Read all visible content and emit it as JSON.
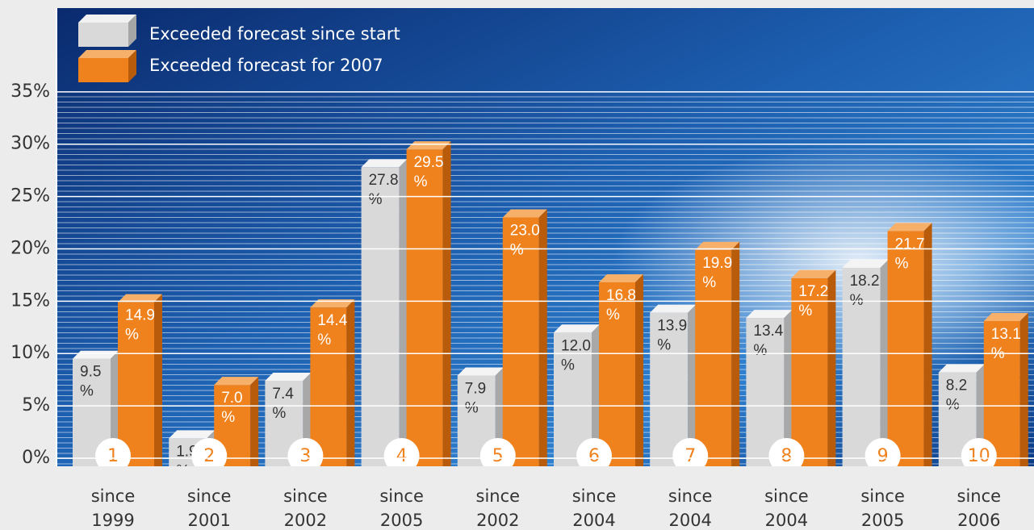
{
  "chart_data": {
    "type": "bar3d",
    "categories": [
      "since 1999",
      "since 2001",
      "since 2002",
      "since 2005",
      "since 2002",
      "since 2004",
      "since 2004",
      "since 2004",
      "since 2005",
      "since 2006"
    ],
    "ranks": [
      "1",
      "2",
      "3",
      "4",
      "5",
      "6",
      "7",
      "8",
      "9",
      "10"
    ],
    "series": [
      {
        "name": "Exceeded forecast since start",
        "color": "#d9d9d9",
        "values": [
          9.5,
          1.9,
          7.4,
          27.8,
          7.9,
          12.0,
          13.9,
          13.4,
          18.2,
          8.2
        ],
        "value_labels": [
          "9.5\n%",
          "1.9\n%",
          "7.4\n%",
          "27.8\n%",
          "7.9\n%",
          "12.0\n%",
          "13.9\n%",
          "13.4\n%",
          "18.2\n%",
          "8.2\n%"
        ]
      },
      {
        "name": "Exceeded forecast for 2007",
        "color": "#f0821e",
        "values": [
          14.9,
          7.0,
          14.4,
          29.5,
          23.0,
          16.8,
          19.9,
          17.2,
          21.7,
          13.1
        ],
        "value_labels": [
          "14.9\n%",
          "7.0\n%",
          "14.4\n%",
          "29.5\n%",
          "23.0\n%",
          "16.8\n%",
          "19.9\n%",
          "17.2\n%",
          "21.7\n%",
          "13.1\n%"
        ]
      }
    ],
    "ylim": [
      0,
      43
    ],
    "yticks": [
      {
        "value": 0,
        "label": "0%"
      },
      {
        "value": 5,
        "label": "5%"
      },
      {
        "value": 10,
        "label": "10%"
      },
      {
        "value": 15,
        "label": "15%"
      },
      {
        "value": 20,
        "label": "20%"
      },
      {
        "value": 25,
        "label": "25%"
      },
      {
        "value": 30,
        "label": "30%"
      },
      {
        "value": 35,
        "label": "35%"
      }
    ],
    "grid": true
  }
}
